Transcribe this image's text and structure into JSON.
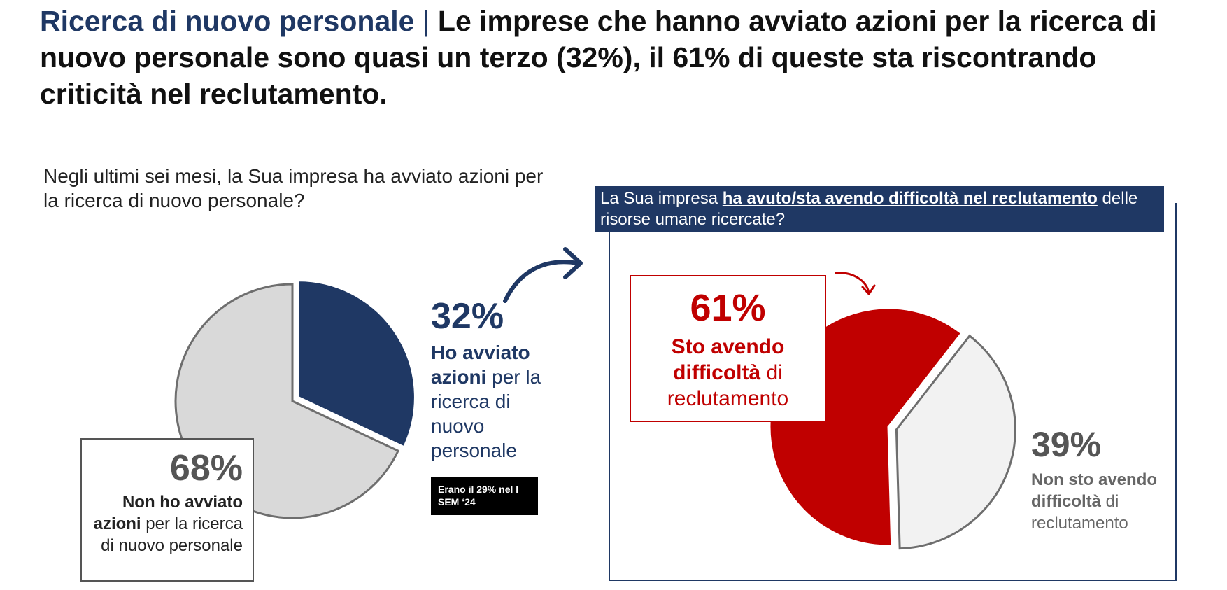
{
  "title": {
    "accent": "Ricerca di nuovo personale",
    "separator": "|",
    "main": "Le imprese che hanno avviato azioni per la ricerca di nuovo personale sono quasi un terzo (32%), il 61% di queste sta riscontrando criticità nel reclutamento."
  },
  "left_question": "Negli ultimi sei mesi, la Sua impresa ha avviato azioni per la ricerca di nuovo personale?",
  "right_question": {
    "prefix": "La Sua impresa ",
    "underlined": "ha avuto/sta avendo difficoltà nel reclutamento",
    "suffix": " delle risorse umane ricercate?"
  },
  "labels": {
    "yes": {
      "value": "32%",
      "bold": "Ho avviato azioni",
      "rest": " per la ricerca di nuovo personale"
    },
    "no": {
      "value": "68%",
      "bold": "Non ho avviato azioni",
      "rest": " per la ricerca di nuovo personale"
    },
    "note": "Erano il 29% nel I SEM ‘24",
    "difficulty": {
      "value": "61%",
      "bold": "Sto avendo difficoltà",
      "rest": " di reclutamento"
    },
    "no_difficulty": {
      "value": "39%",
      "bold": "Non sto avendo difficoltà",
      "rest": " di reclutamento"
    }
  },
  "colors": {
    "navy": "#1f3864",
    "grey_slice": "#d9d9d9",
    "red": "#c00000",
    "light_slice": "#f2f2f2"
  },
  "chart_data": [
    {
      "type": "pie",
      "categories": [
        "Ho avviato azioni per la ricerca di nuovo personale",
        "Non ho avviato azioni per la ricerca di nuovo personale"
      ],
      "values": [
        32,
        68
      ],
      "colors": [
        "#1f3864",
        "#d9d9d9"
      ]
    },
    {
      "type": "pie",
      "categories": [
        "Sto avendo difficoltà di reclutamento",
        "Non sto avendo difficoltà di reclutamento"
      ],
      "values": [
        61,
        39
      ],
      "colors": [
        "#c00000",
        "#f2f2f2"
      ]
    }
  ]
}
